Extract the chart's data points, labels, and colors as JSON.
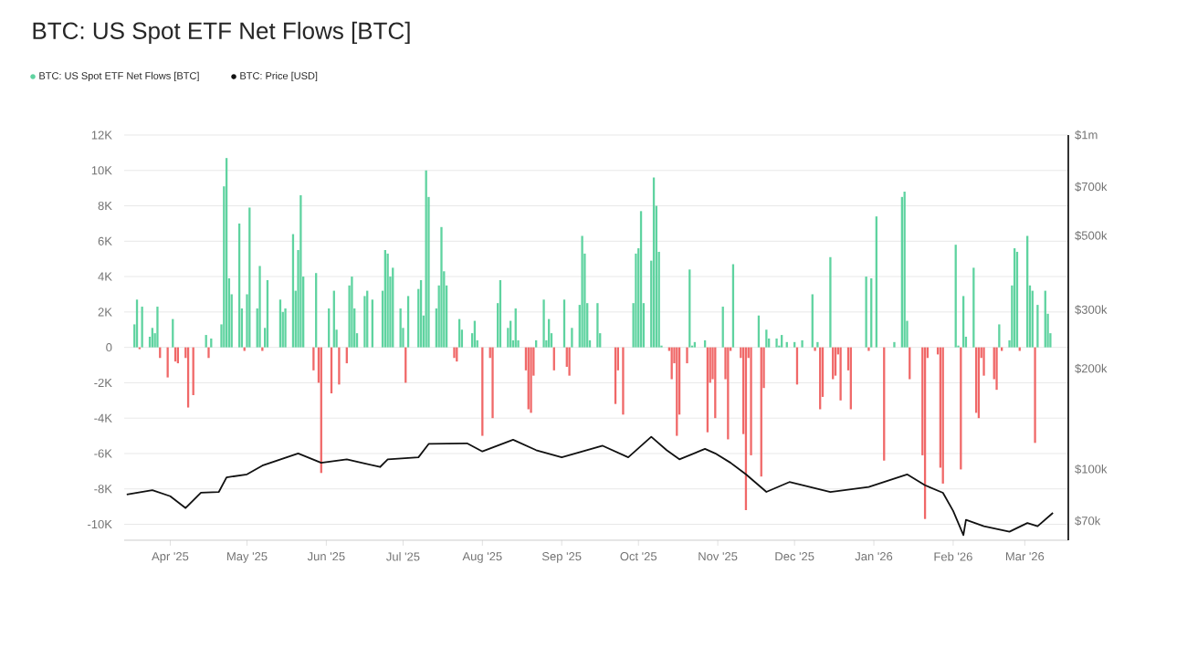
{
  "chart_data": {
    "type": "bar",
    "title": "BTC: US Spot ETF Net Flows [BTC]",
    "xlim": [
      "2025-03-14",
      "2026-03-18"
    ],
    "xticks": [
      {
        "value": "2025-04-01",
        "label": "Apr '25"
      },
      {
        "value": "2025-05-01",
        "label": "May '25"
      },
      {
        "value": "2025-06-01",
        "label": "Jun '25"
      },
      {
        "value": "2025-07-01",
        "label": "Jul '25"
      },
      {
        "value": "2025-08-01",
        "label": "Aug '25"
      },
      {
        "value": "2025-09-01",
        "label": "Sep '25"
      },
      {
        "value": "2025-10-01",
        "label": "Oct '25"
      },
      {
        "value": "2025-11-01",
        "label": "Nov '25"
      },
      {
        "value": "2025-12-01",
        "label": "Dec '25"
      },
      {
        "value": "2026-01-01",
        "label": "Jan '26"
      },
      {
        "value": "2026-02-01",
        "label": "Feb '26"
      },
      {
        "value": "2026-03-01",
        "label": "Mar '26"
      }
    ],
    "ylim": [
      -10900,
      12000
    ],
    "yticks": [
      {
        "value": -10000,
        "label": "-10K"
      },
      {
        "value": -8000,
        "label": "-8K"
      },
      {
        "value": -6000,
        "label": "-6K"
      },
      {
        "value": -4000,
        "label": "-4K"
      },
      {
        "value": -2000,
        "label": "-2K"
      },
      0,
      {
        "value": 2000,
        "label": "2K"
      },
      {
        "value": 4000,
        "label": "4K"
      },
      {
        "value": 6000,
        "label": "6K"
      },
      {
        "value": 8000,
        "label": "8K"
      },
      {
        "value": 10000,
        "label": "10K"
      },
      {
        "value": 12000,
        "label": "12K"
      }
    ],
    "y2lim": [
      61300,
      1000000
    ],
    "y2ticks": [
      {
        "value": 70000,
        "label": "$70k"
      },
      {
        "value": 100000,
        "label": "$100k"
      },
      {
        "value": 200000,
        "label": "$200k"
      },
      {
        "value": 300000,
        "label": "$300k"
      },
      {
        "value": 500000,
        "label": "$500k"
      },
      {
        "value": 700000,
        "label": "$700k"
      },
      {
        "value": 1000000,
        "label": "$1m"
      }
    ],
    "log": "y2",
    "grid": "y",
    "legend": "top left",
    "series": [
      {
        "name": "BTC: US Spot ETF Net Flows [BTC]",
        "x": [
          "2025-03-18",
          "2025-03-19",
          "2025-03-20",
          "2025-03-21",
          "2025-03-24",
          "2025-03-25",
          "2025-03-26",
          "2025-03-27",
          "2025-03-28",
          "2025-03-31",
          "2025-04-02",
          "2025-04-03",
          "2025-04-04",
          "2025-04-07",
          "2025-04-08",
          "2025-04-10",
          "2025-04-15",
          "2025-04-16",
          "2025-04-17",
          "2025-04-21",
          "2025-04-22",
          "2025-04-23",
          "2025-04-24",
          "2025-04-25",
          "2025-04-28",
          "2025-04-29",
          "2025-04-30",
          "2025-05-01",
          "2025-05-02",
          "2025-05-05",
          "2025-05-06",
          "2025-05-07",
          "2025-05-08",
          "2025-05-09",
          "2025-05-14",
          "2025-05-15",
          "2025-05-16",
          "2025-05-19",
          "2025-05-20",
          "2025-05-21",
          "2025-05-22",
          "2025-05-23",
          "2025-05-27",
          "2025-05-28",
          "2025-05-29",
          "2025-05-30",
          "2025-06-02",
          "2025-06-03",
          "2025-06-04",
          "2025-06-05",
          "2025-06-06",
          "2025-06-09",
          "2025-06-10",
          "2025-06-11",
          "2025-06-12",
          "2025-06-13",
          "2025-06-16",
          "2025-06-17",
          "2025-06-19",
          "2025-06-23",
          "2025-06-24",
          "2025-06-25",
          "2025-06-26",
          "2025-06-27",
          "2025-06-30",
          "2025-07-01",
          "2025-07-02",
          "2025-07-03",
          "2025-07-07",
          "2025-07-08",
          "2025-07-09",
          "2025-07-10",
          "2025-07-11",
          "2025-07-14",
          "2025-07-15",
          "2025-07-16",
          "2025-07-17",
          "2025-07-18",
          "2025-07-21",
          "2025-07-22",
          "2025-07-23",
          "2025-07-24",
          "2025-07-28",
          "2025-07-29",
          "2025-07-30",
          "2025-08-01",
          "2025-08-04",
          "2025-08-05",
          "2025-08-07",
          "2025-08-08",
          "2025-08-11",
          "2025-08-12",
          "2025-08-13",
          "2025-08-14",
          "2025-08-15",
          "2025-08-18",
          "2025-08-19",
          "2025-08-20",
          "2025-08-21",
          "2025-08-22",
          "2025-08-25",
          "2025-08-26",
          "2025-08-27",
          "2025-08-28",
          "2025-08-29",
          "2025-09-02",
          "2025-09-03",
          "2025-09-04",
          "2025-09-05",
          "2025-09-08",
          "2025-09-09",
          "2025-09-10",
          "2025-09-11",
          "2025-09-12",
          "2025-09-15",
          "2025-09-16",
          "2025-09-22",
          "2025-09-23",
          "2025-09-25",
          "2025-09-29",
          "2025-09-30",
          "2025-10-01",
          "2025-10-02",
          "2025-10-03",
          "2025-10-06",
          "2025-10-07",
          "2025-10-08",
          "2025-10-09",
          "2025-10-10",
          "2025-10-13",
          "2025-10-14",
          "2025-10-15",
          "2025-10-16",
          "2025-10-17",
          "2025-10-20",
          "2025-10-21",
          "2025-10-22",
          "2025-10-23",
          "2025-10-27",
          "2025-10-28",
          "2025-10-29",
          "2025-10-30",
          "2025-10-31",
          "2025-11-03",
          "2025-11-04",
          "2025-11-05",
          "2025-11-06",
          "2025-11-07",
          "2025-11-10",
          "2025-11-11",
          "2025-11-12",
          "2025-11-13",
          "2025-11-14",
          "2025-11-17",
          "2025-11-18",
          "2025-11-19",
          "2025-11-20",
          "2025-11-21",
          "2025-11-24",
          "2025-11-25",
          "2025-11-26",
          "2025-11-28",
          "2025-12-01",
          "2025-12-02",
          "2025-12-04",
          "2025-12-08",
          "2025-12-09",
          "2025-12-10",
          "2025-12-11",
          "2025-12-12",
          "2025-12-15",
          "2025-12-16",
          "2025-12-17",
          "2025-12-18",
          "2025-12-19",
          "2025-12-22",
          "2025-12-23",
          "2025-12-29",
          "2025-12-30",
          "2025-12-31",
          "2026-01-02",
          "2026-01-05",
          "2026-01-09",
          "2026-01-12",
          "2026-01-13",
          "2026-01-14",
          "2026-01-15",
          "2026-01-20",
          "2026-01-21",
          "2026-01-22",
          "2026-01-26",
          "2026-01-27",
          "2026-01-28",
          "2026-02-02",
          "2026-02-03",
          "2026-02-04",
          "2026-02-05",
          "2026-02-06",
          "2026-02-09",
          "2026-02-10",
          "2026-02-11",
          "2026-02-12",
          "2026-02-13",
          "2026-02-17",
          "2026-02-18",
          "2026-02-19",
          "2026-02-20",
          "2026-02-23",
          "2026-02-24",
          "2026-02-25",
          "2026-02-26",
          "2026-02-27",
          "2026-03-02",
          "2026-03-03",
          "2026-03-04",
          "2026-03-05",
          "2026-03-06",
          "2026-03-09",
          "2026-03-10",
          "2026-03-11"
        ],
        "values": [
          1300,
          2700,
          -100,
          2300,
          600,
          1100,
          800,
          2300,
          -600,
          -1700,
          1600,
          -800,
          -900,
          -600,
          -3400,
          -2700,
          700,
          -600,
          500,
          1300,
          9100,
          10700,
          3900,
          3000,
          7000,
          2200,
          -200,
          3000,
          7900,
          2200,
          4600,
          -200,
          1100,
          3800,
          2700,
          2000,
          2200,
          6400,
          3200,
          5500,
          8600,
          4000,
          -1300,
          4200,
          -2000,
          -7100,
          2200,
          -2600,
          3200,
          1000,
          -2100,
          -900,
          3500,
          4000,
          2200,
          800,
          2900,
          3200,
          2700,
          3200,
          5500,
          5300,
          4000,
          4500,
          2200,
          1100,
          -2000,
          2900,
          3300,
          3800,
          1800,
          10000,
          8500,
          2200,
          3500,
          6800,
          4300,
          3500,
          -600,
          -800,
          1600,
          1000,
          800,
          1500,
          400,
          -5000,
          -600,
          -4000,
          2500,
          3800,
          1100,
          1500,
          400,
          2200,
          400,
          -1300,
          -3500,
          -3700,
          -1600,
          400,
          2700,
          400,
          1600,
          800,
          -1300,
          2700,
          -1100,
          -1600,
          1100,
          2400,
          6300,
          5300,
          2500,
          400,
          2500,
          800,
          -3200,
          -1300,
          -3800,
          2500,
          5300,
          5600,
          7700,
          2500,
          4900,
          9600,
          8000,
          5400,
          100,
          -200,
          -1800,
          -900,
          -5000,
          -3800,
          -900,
          4400,
          100,
          300,
          400,
          -4800,
          -2000,
          -1800,
          -4000,
          2300,
          -1800,
          -5200,
          -200,
          4700,
          -600,
          -4900,
          -9200,
          -600,
          -6100,
          1800,
          -7300,
          -2300,
          1000,
          500,
          500,
          100,
          700,
          300,
          300,
          -2100,
          400,
          3000,
          -200,
          300,
          -3500,
          -2800,
          5100,
          -1800,
          -1600,
          -400,
          -3000,
          -1300,
          -3500,
          4000,
          -200,
          3900,
          7400,
          -6400,
          300,
          8500,
          8800,
          1500,
          -1800,
          -6100,
          -9700,
          -600,
          -400,
          -6800,
          -7700,
          5800,
          100,
          -6900,
          2900,
          600,
          4500,
          -3700,
          -4000,
          -600,
          -1600,
          -1800,
          -2400,
          1300,
          -200,
          400,
          3500,
          5600,
          5400,
          -200,
          6300,
          3500,
          3200,
          -5400,
          2400,
          3200,
          1900,
          800
        ],
        "colors": [
          "#5fd3a0",
          "#5fd3a0",
          "#f06868",
          "#5fd3a0",
          "#5fd3a0",
          "#5fd3a0",
          "#5fd3a0",
          "#5fd3a0",
          "#f06868",
          "#f06868",
          "#5fd3a0",
          "#f06868",
          "#f06868",
          "#f06868",
          "#f06868",
          "#f06868",
          "#5fd3a0",
          "#f06868",
          "#5fd3a0",
          "#5fd3a0",
          "#5fd3a0",
          "#5fd3a0",
          "#5fd3a0",
          "#5fd3a0",
          "#5fd3a0",
          "#5fd3a0",
          "#f06868",
          "#5fd3a0",
          "#5fd3a0",
          "#5fd3a0",
          "#5fd3a0",
          "#f06868",
          "#5fd3a0",
          "#5fd3a0",
          "#5fd3a0",
          "#5fd3a0",
          "#5fd3a0",
          "#5fd3a0",
          "#5fd3a0",
          "#5fd3a0",
          "#5fd3a0",
          "#5fd3a0",
          "#f06868",
          "#5fd3a0",
          "#f06868",
          "#f06868",
          "#5fd3a0",
          "#f06868",
          "#5fd3a0",
          "#5fd3a0",
          "#f06868",
          "#f06868",
          "#5fd3a0",
          "#5fd3a0",
          "#5fd3a0",
          "#5fd3a0",
          "#5fd3a0",
          "#5fd3a0",
          "#5fd3a0",
          "#5fd3a0",
          "#5fd3a0",
          "#5fd3a0",
          "#5fd3a0",
          "#5fd3a0",
          "#5fd3a0",
          "#5fd3a0",
          "#f06868",
          "#5fd3a0",
          "#5fd3a0",
          "#5fd3a0",
          "#5fd3a0",
          "#5fd3a0",
          "#5fd3a0",
          "#5fd3a0",
          "#5fd3a0",
          "#5fd3a0",
          "#5fd3a0",
          "#5fd3a0",
          "#f06868",
          "#f06868",
          "#5fd3a0",
          "#5fd3a0",
          "#5fd3a0",
          "#5fd3a0",
          "#5fd3a0",
          "#f06868",
          "#f06868",
          "#f06868",
          "#5fd3a0",
          "#5fd3a0",
          "#5fd3a0",
          "#5fd3a0",
          "#5fd3a0",
          "#5fd3a0",
          "#5fd3a0",
          "#f06868",
          "#f06868",
          "#f06868",
          "#f06868",
          "#5fd3a0",
          "#5fd3a0",
          "#5fd3a0",
          "#5fd3a0",
          "#5fd3a0",
          "#f06868",
          "#5fd3a0",
          "#f06868",
          "#f06868",
          "#5fd3a0",
          "#5fd3a0",
          "#5fd3a0",
          "#5fd3a0",
          "#5fd3a0",
          "#5fd3a0",
          "#5fd3a0",
          "#5fd3a0",
          "#f06868",
          "#f06868",
          "#f06868",
          "#5fd3a0",
          "#5fd3a0",
          "#5fd3a0",
          "#5fd3a0",
          "#5fd3a0",
          "#5fd3a0",
          "#5fd3a0",
          "#5fd3a0",
          "#5fd3a0",
          "#5fd3a0",
          "#f06868",
          "#f06868",
          "#f06868",
          "#f06868",
          "#f06868",
          "#f06868",
          "#5fd3a0",
          "#5fd3a0",
          "#5fd3a0",
          "#5fd3a0",
          "#f06868",
          "#f06868",
          "#f06868",
          "#f06868",
          "#5fd3a0",
          "#f06868",
          "#f06868",
          "#f06868",
          "#5fd3a0",
          "#f06868",
          "#f06868",
          "#f06868",
          "#f06868",
          "#f06868",
          "#5fd3a0",
          "#f06868",
          "#f06868",
          "#5fd3a0",
          "#5fd3a0",
          "#5fd3a0",
          "#5fd3a0",
          "#5fd3a0",
          "#5fd3a0",
          "#5fd3a0",
          "#f06868",
          "#5fd3a0",
          "#5fd3a0",
          "#f06868",
          "#5fd3a0",
          "#f06868",
          "#f06868",
          "#5fd3a0",
          "#f06868",
          "#f06868",
          "#f06868",
          "#f06868",
          "#f06868",
          "#f06868",
          "#5fd3a0",
          "#f06868",
          "#5fd3a0",
          "#5fd3a0",
          "#f06868",
          "#5fd3a0",
          "#5fd3a0",
          "#5fd3a0",
          "#5fd3a0",
          "#f06868",
          "#f06868",
          "#f06868",
          "#f06868",
          "#f06868",
          "#f06868",
          "#f06868",
          "#5fd3a0",
          "#5fd3a0",
          "#f06868",
          "#5fd3a0",
          "#5fd3a0",
          "#5fd3a0",
          "#f06868",
          "#f06868",
          "#f06868",
          "#f06868",
          "#f06868",
          "#f06868",
          "#5fd3a0",
          "#f06868",
          "#5fd3a0",
          "#5fd3a0",
          "#5fd3a0",
          "#5fd3a0",
          "#f06868",
          "#5fd3a0",
          "#5fd3a0",
          "#5fd3a0",
          "#f06868",
          "#5fd3a0",
          "#5fd3a0",
          "#5fd3a0",
          "#5fd3a0"
        ]
      },
      {
        "name": "BTC: Price [USD]",
        "type": "line",
        "axis": "y2",
        "color": "#111111",
        "x": [
          "2025-03-15",
          "2025-03-25",
          "2025-04-01",
          "2025-04-07",
          "2025-04-13",
          "2025-04-20",
          "2025-04-23",
          "2025-05-01",
          "2025-05-07",
          "2025-05-21",
          "2025-05-30",
          "2025-06-09",
          "2025-06-22",
          "2025-06-25",
          "2025-07-07",
          "2025-07-11",
          "2025-07-26",
          "2025-08-01",
          "2025-08-13",
          "2025-08-22",
          "2025-09-01",
          "2025-09-17",
          "2025-09-27",
          "2025-10-06",
          "2025-10-12",
          "2025-10-17",
          "2025-10-27",
          "2025-10-31",
          "2025-11-06",
          "2025-11-12",
          "2025-11-20",
          "2025-11-29",
          "2025-12-15",
          "2025-12-30",
          "2026-01-14",
          "2026-01-21",
          "2026-01-28",
          "2026-02-01",
          "2026-02-05",
          "2026-02-06",
          "2026-02-13",
          "2026-02-23",
          "2026-03-02",
          "2026-03-06",
          "2026-03-12"
        ],
        "values": [
          84000,
          86500,
          83000,
          76500,
          85000,
          85500,
          94500,
          96500,
          102500,
          111500,
          104500,
          107000,
          101500,
          107000,
          108500,
          119000,
          119500,
          113000,
          122500,
          114000,
          108500,
          117500,
          108500,
          125000,
          114000,
          107000,
          115000,
          111500,
          104500,
          96500,
          85500,
          91500,
          85500,
          88500,
          96500,
          89500,
          85000,
          75000,
          63500,
          70500,
          67500,
          65000,
          69000,
          67500,
          74000
        ]
      }
    ]
  }
}
